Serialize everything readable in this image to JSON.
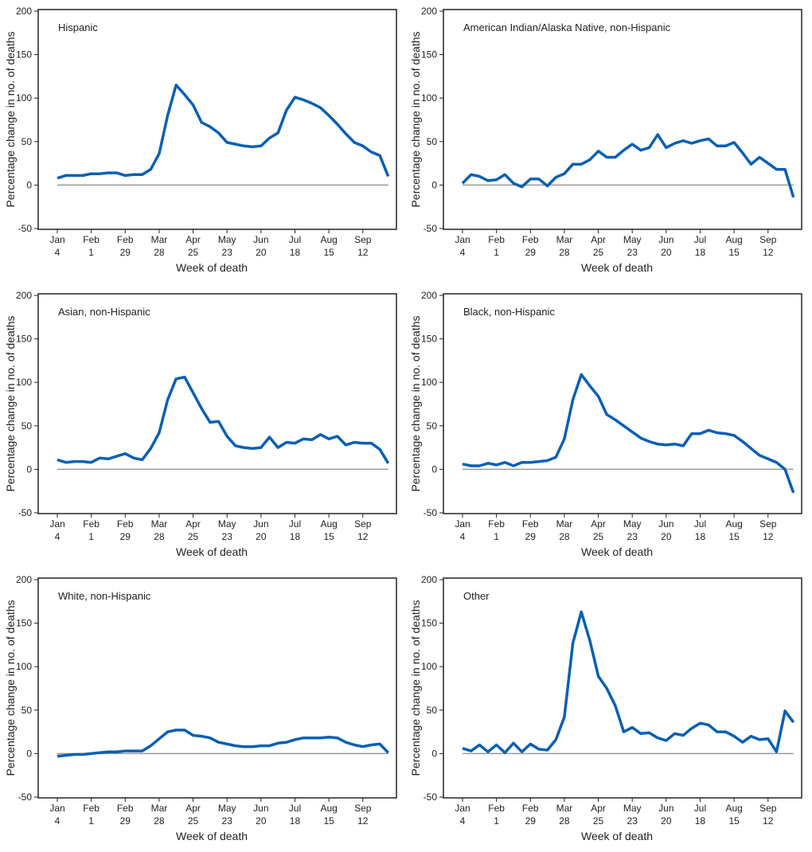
{
  "chart_data": [
    {
      "type": "line",
      "title": "Hispanic",
      "xlabel": "Week of death",
      "ylabel": "Percentage change in no. of deaths",
      "ylim": [
        -50,
        200
      ],
      "values": [
        8,
        11,
        11,
        11,
        13,
        13,
        14,
        14,
        11,
        12,
        12,
        18,
        36,
        80,
        115,
        104,
        92,
        72,
        67,
        60,
        49,
        47,
        45,
        44,
        45,
        54,
        60,
        86,
        101,
        98,
        94,
        89,
        80,
        70,
        59,
        49,
        45,
        38,
        34,
        10
      ]
    },
    {
      "type": "line",
      "title": "American Indian/Alaska Native, non-Hispanic",
      "xlabel": "Week of death",
      "ylabel": "Percentage change in no. of deaths",
      "ylim": [
        -50,
        200
      ],
      "values": [
        2,
        12,
        10,
        5,
        6,
        12,
        2,
        -2,
        7,
        7,
        -1,
        9,
        13,
        24,
        24,
        29,
        39,
        32,
        32,
        40,
        47,
        40,
        43,
        58,
        43,
        48,
        51,
        48,
        51,
        53,
        45,
        45,
        49,
        37,
        24,
        32,
        25,
        18,
        18,
        -14
      ]
    },
    {
      "type": "line",
      "title": "Asian, non-Hispanic",
      "xlabel": "Week of death",
      "ylabel": "Percentage change in no. of deaths",
      "ylim": [
        -50,
        200
      ],
      "values": [
        11,
        8,
        9,
        9,
        8,
        13,
        12,
        15,
        18,
        13,
        11,
        24,
        42,
        80,
        104,
        106,
        88,
        70,
        54,
        55,
        38,
        27,
        25,
        24,
        25,
        37,
        25,
        31,
        30,
        35,
        34,
        40,
        35,
        38,
        28,
        31,
        30,
        30,
        23,
        7
      ]
    },
    {
      "type": "line",
      "title": "Black, non-Hispanic",
      "xlabel": "Week of death",
      "ylabel": "Percentage change in no. of deaths",
      "ylim": [
        -50,
        200
      ],
      "values": [
        6,
        4,
        4,
        7,
        5,
        8,
        4,
        8,
        8,
        9,
        10,
        14,
        35,
        80,
        109,
        96,
        84,
        63,
        57,
        50,
        43,
        36,
        32,
        29,
        28,
        29,
        27,
        41,
        41,
        45,
        42,
        41,
        39,
        32,
        24,
        16,
        12,
        8,
        0,
        -27
      ]
    },
    {
      "type": "line",
      "title": "White, non-Hispanic",
      "xlabel": "Week of death",
      "ylabel": "Percentage change in no. of deaths",
      "ylim": [
        -50,
        200
      ],
      "values": [
        -3,
        -2,
        -1,
        -1,
        0,
        1,
        2,
        2,
        3,
        3,
        3,
        9,
        17,
        25,
        27,
        27,
        21,
        20,
        18,
        13,
        11,
        9,
        8,
        8,
        9,
        9,
        12,
        13,
        16,
        18,
        18,
        18,
        19,
        18,
        13,
        10,
        8,
        10,
        11,
        1
      ]
    },
    {
      "type": "line",
      "title": "Other",
      "xlabel": "Week of death",
      "ylabel": "Percentage change in no. of deaths",
      "ylim": [
        -50,
        200
      ],
      "values": [
        6,
        3,
        10,
        2,
        10,
        1,
        12,
        2,
        11,
        5,
        4,
        16,
        42,
        127,
        163,
        130,
        89,
        75,
        55,
        25,
        30,
        23,
        24,
        18,
        15,
        23,
        21,
        29,
        35,
        33,
        25,
        25,
        20,
        13,
        20,
        16,
        17,
        2,
        49,
        36
      ]
    }
  ],
  "x_ticks": [
    [
      "Jan",
      "4"
    ],
    [
      "Feb",
      "1"
    ],
    [
      "Feb",
      "29"
    ],
    [
      "Mar",
      "28"
    ],
    [
      "Apr",
      "25"
    ],
    [
      "May",
      "23"
    ],
    [
      "Jun",
      "20"
    ],
    [
      "Jul",
      "18"
    ],
    [
      "Aug",
      "15"
    ],
    [
      "Sep",
      "12"
    ]
  ],
  "y_ticks": [
    200,
    150,
    100,
    50,
    0,
    -50
  ],
  "colors": {
    "line": "#0a5fb4",
    "zero": "#9a9a9a",
    "axis": "#222222"
  }
}
